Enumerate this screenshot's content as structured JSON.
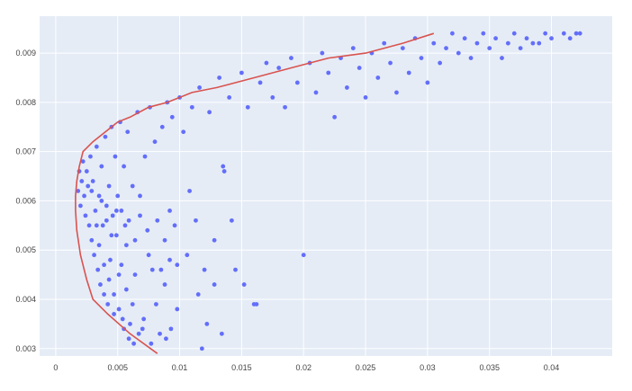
{
  "chart_data": {
    "type": "scatter",
    "title": "",
    "xlabel": "",
    "ylabel": "",
    "xlim": [
      -0.0013,
      0.0449
    ],
    "ylim": [
      0.00285,
      0.00975
    ],
    "x_ticks": [
      0,
      0.005,
      0.01,
      0.015,
      0.02,
      0.025,
      0.03,
      0.035,
      0.04
    ],
    "x_tick_labels": [
      "0",
      "0.005",
      "0.01",
      "0.015",
      "0.02",
      "0.025",
      "0.03",
      "0.035",
      "0.04"
    ],
    "y_ticks": [
      0.003,
      0.004,
      0.005,
      0.006,
      0.007,
      0.008,
      0.009
    ],
    "y_tick_labels": [
      "0.003",
      "0.004",
      "0.005",
      "0.006",
      "0.007",
      "0.008",
      "0.009"
    ],
    "grid": true,
    "legend": "none",
    "colors": {
      "plot_background": "#e5ecf6",
      "points": "#636efa",
      "frontier": "#d9534f"
    },
    "series": [
      {
        "type": "scatter",
        "points": [
          [
            0.0018,
            0.0062
          ],
          [
            0.0019,
            0.0066
          ],
          [
            0.002,
            0.0059
          ],
          [
            0.0021,
            0.0064
          ],
          [
            0.0022,
            0.0068
          ],
          [
            0.0023,
            0.0061
          ],
          [
            0.0024,
            0.0057
          ],
          [
            0.0025,
            0.0066
          ],
          [
            0.0026,
            0.0063
          ],
          [
            0.0027,
            0.0055
          ],
          [
            0.0028,
            0.0069
          ],
          [
            0.0029,
            0.0052
          ],
          [
            0.003,
            0.0064
          ],
          [
            0.0031,
            0.0049
          ],
          [
            0.0032,
            0.0058
          ],
          [
            0.0033,
            0.0071
          ],
          [
            0.0034,
            0.0046
          ],
          [
            0.0035,
            0.0061
          ],
          [
            0.0036,
            0.0043
          ],
          [
            0.0037,
            0.0067
          ],
          [
            0.0038,
            0.0055
          ],
          [
            0.0039,
            0.0041
          ],
          [
            0.004,
            0.0073
          ],
          [
            0.0041,
            0.0059
          ],
          [
            0.0042,
            0.0039
          ],
          [
            0.0043,
            0.0063
          ],
          [
            0.0044,
            0.0048
          ],
          [
            0.0045,
            0.0075
          ],
          [
            0.0046,
            0.0057
          ],
          [
            0.0047,
            0.0037
          ],
          [
            0.0048,
            0.0069
          ],
          [
            0.0049,
            0.0053
          ],
          [
            0.005,
            0.0061
          ],
          [
            0.0051,
            0.0045
          ],
          [
            0.0052,
            0.0076
          ],
          [
            0.0053,
            0.0058
          ],
          [
            0.0054,
            0.0036
          ],
          [
            0.0055,
            0.0067
          ],
          [
            0.0056,
            0.0055
          ],
          [
            0.0057,
            0.0042
          ],
          [
            0.0058,
            0.0074
          ],
          [
            0.0059,
            0.0056
          ],
          [
            0.006,
            0.0035
          ],
          [
            0.0062,
            0.0063
          ],
          [
            0.0064,
            0.0052
          ],
          [
            0.0066,
            0.0078
          ],
          [
            0.0068,
            0.0057
          ],
          [
            0.007,
            0.0034
          ],
          [
            0.0072,
            0.0069
          ],
          [
            0.0074,
            0.0054
          ],
          [
            0.0076,
            0.0079
          ],
          [
            0.0078,
            0.0046
          ],
          [
            0.008,
            0.0072
          ],
          [
            0.0082,
            0.0056
          ],
          [
            0.0084,
            0.0033
          ],
          [
            0.0086,
            0.0075
          ],
          [
            0.0088,
            0.0052
          ],
          [
            0.009,
            0.008
          ],
          [
            0.0092,
            0.0048
          ],
          [
            0.0094,
            0.0077
          ],
          [
            0.0096,
            0.0055
          ],
          [
            0.0098,
            0.0038
          ],
          [
            0.01,
            0.0081
          ],
          [
            0.0103,
            0.0074
          ],
          [
            0.0106,
            0.0049
          ],
          [
            0.011,
            0.0079
          ],
          [
            0.0113,
            0.0056
          ],
          [
            0.0116,
            0.0083
          ],
          [
            0.012,
            0.0046
          ],
          [
            0.0124,
            0.0078
          ],
          [
            0.0128,
            0.0052
          ],
          [
            0.0132,
            0.0085
          ],
          [
            0.0136,
            0.0066
          ],
          [
            0.014,
            0.0081
          ],
          [
            0.0145,
            0.0046
          ],
          [
            0.015,
            0.0086
          ],
          [
            0.0155,
            0.0079
          ],
          [
            0.016,
            0.0039
          ],
          [
            0.0165,
            0.0084
          ],
          [
            0.017,
            0.0088
          ],
          [
            0.0175,
            0.0081
          ],
          [
            0.018,
            0.0087
          ],
          [
            0.0185,
            0.0079
          ],
          [
            0.019,
            0.0089
          ],
          [
            0.0195,
            0.0084
          ],
          [
            0.02,
            0.0049
          ],
          [
            0.0205,
            0.0088
          ],
          [
            0.021,
            0.0082
          ],
          [
            0.0215,
            0.009
          ],
          [
            0.022,
            0.0086
          ],
          [
            0.0225,
            0.0077
          ],
          [
            0.023,
            0.0089
          ],
          [
            0.0235,
            0.0083
          ],
          [
            0.024,
            0.0091
          ],
          [
            0.0245,
            0.0087
          ],
          [
            0.025,
            0.0081
          ],
          [
            0.0255,
            0.009
          ],
          [
            0.026,
            0.0085
          ],
          [
            0.0265,
            0.0092
          ],
          [
            0.027,
            0.0088
          ],
          [
            0.0275,
            0.0082
          ],
          [
            0.028,
            0.0091
          ],
          [
            0.0285,
            0.0086
          ],
          [
            0.029,
            0.0093
          ],
          [
            0.0295,
            0.0089
          ],
          [
            0.03,
            0.0084
          ],
          [
            0.0305,
            0.0092
          ],
          [
            0.031,
            0.0088
          ],
          [
            0.0315,
            0.0091
          ],
          [
            0.032,
            0.0094
          ],
          [
            0.0325,
            0.009
          ],
          [
            0.033,
            0.0093
          ],
          [
            0.0335,
            0.0089
          ],
          [
            0.034,
            0.0092
          ],
          [
            0.0345,
            0.0094
          ],
          [
            0.035,
            0.0091
          ],
          [
            0.0355,
            0.0093
          ],
          [
            0.036,
            0.0089
          ],
          [
            0.0365,
            0.0092
          ],
          [
            0.037,
            0.0094
          ],
          [
            0.0375,
            0.0091
          ],
          [
            0.038,
            0.0093
          ],
          [
            0.0385,
            0.0092
          ],
          [
            0.039,
            0.0092
          ],
          [
            0.0395,
            0.0094
          ],
          [
            0.04,
            0.0093
          ],
          [
            0.041,
            0.0094
          ],
          [
            0.0415,
            0.0093
          ],
          [
            0.042,
            0.0094
          ],
          [
            0.0423,
            0.0094
          ],
          [
            0.0118,
            0.003
          ],
          [
            0.0134,
            0.0033
          ],
          [
            0.0152,
            0.0043
          ],
          [
            0.0162,
            0.0039
          ],
          [
            0.0128,
            0.0043
          ],
          [
            0.0135,
            0.0067
          ],
          [
            0.0142,
            0.0056
          ],
          [
            0.0108,
            0.0062
          ],
          [
            0.0115,
            0.0041
          ],
          [
            0.0122,
            0.0035
          ],
          [
            0.0098,
            0.0047
          ],
          [
            0.0092,
            0.0058
          ],
          [
            0.0088,
            0.0043
          ],
          [
            0.0075,
            0.0049
          ],
          [
            0.0068,
            0.0061
          ],
          [
            0.0064,
            0.0045
          ],
          [
            0.0062,
            0.0039
          ],
          [
            0.0057,
            0.0051
          ],
          [
            0.0053,
            0.0047
          ],
          [
            0.0049,
            0.0058
          ],
          [
            0.0045,
            0.0053
          ],
          [
            0.0041,
            0.0056
          ],
          [
            0.0037,
            0.006
          ],
          [
            0.0033,
            0.0055
          ],
          [
            0.0029,
            0.0062
          ],
          [
            0.0035,
            0.0051
          ],
          [
            0.0039,
            0.0047
          ],
          [
            0.0043,
            0.0044
          ],
          [
            0.0047,
            0.0041
          ],
          [
            0.0051,
            0.0038
          ],
          [
            0.0055,
            0.0034
          ],
          [
            0.0059,
            0.0032
          ],
          [
            0.0063,
            0.0031
          ],
          [
            0.0067,
            0.0033
          ],
          [
            0.0071,
            0.0036
          ],
          [
            0.0077,
            0.0031
          ],
          [
            0.0081,
            0.0039
          ],
          [
            0.0085,
            0.0046
          ],
          [
            0.0089,
            0.0032
          ],
          [
            0.0093,
            0.0034
          ]
        ]
      },
      {
        "type": "line",
        "points": [
          [
            0.0082,
            0.0029
          ],
          [
            0.006,
            0.0033
          ],
          [
            0.0042,
            0.0037
          ],
          [
            0.003,
            0.004
          ],
          [
            0.0025,
            0.0044
          ],
          [
            0.002,
            0.0049
          ],
          [
            0.0017,
            0.0054
          ],
          [
            0.0016,
            0.0058
          ],
          [
            0.0016,
            0.0061
          ],
          [
            0.0017,
            0.0064
          ],
          [
            0.0019,
            0.0067
          ],
          [
            0.0022,
            0.007
          ],
          [
            0.003,
            0.0072
          ],
          [
            0.004,
            0.0074
          ],
          [
            0.005,
            0.0076
          ],
          [
            0.006,
            0.0077
          ],
          [
            0.0075,
            0.0079
          ],
          [
            0.009,
            0.008
          ],
          [
            0.011,
            0.0082
          ],
          [
            0.013,
            0.0083
          ],
          [
            0.016,
            0.0085
          ],
          [
            0.019,
            0.0087
          ],
          [
            0.022,
            0.0089
          ],
          [
            0.025,
            0.009
          ],
          [
            0.028,
            0.0092
          ],
          [
            0.0305,
            0.0094
          ]
        ]
      }
    ]
  }
}
